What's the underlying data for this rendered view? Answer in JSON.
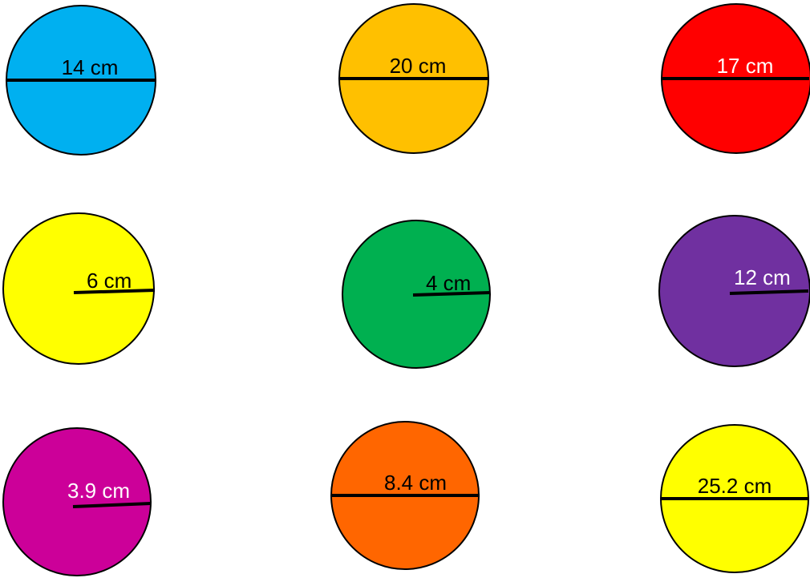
{
  "circles": [
    {
      "label": "14 cm",
      "measure": "diameter",
      "fill": "#00B0F0",
      "label_color": "#000000"
    },
    {
      "label": "20 cm",
      "measure": "diameter",
      "fill": "#FFC000",
      "label_color": "#000000"
    },
    {
      "label": "17 cm",
      "measure": "diameter",
      "fill": "#FF0000",
      "label_color": "#FFFFFF"
    },
    {
      "label": "6 cm",
      "measure": "radius",
      "fill": "#FFFF00",
      "label_color": "#000000"
    },
    {
      "label": "4 cm",
      "measure": "radius",
      "fill": "#00B050",
      "label_color": "#000000"
    },
    {
      "label": "12 cm",
      "measure": "radius",
      "fill": "#7030A0",
      "label_color": "#FFFFFF"
    },
    {
      "label": "3.9 cm",
      "measure": "radius",
      "fill": "#CC0099",
      "label_color": "#FFFFFF"
    },
    {
      "label": "8.4 cm",
      "measure": "diameter",
      "fill": "#FF6600",
      "label_color": "#000000"
    },
    {
      "label": "25.2 cm",
      "measure": "diameter",
      "fill": "#FFFF00",
      "label_color": "#000000"
    }
  ]
}
